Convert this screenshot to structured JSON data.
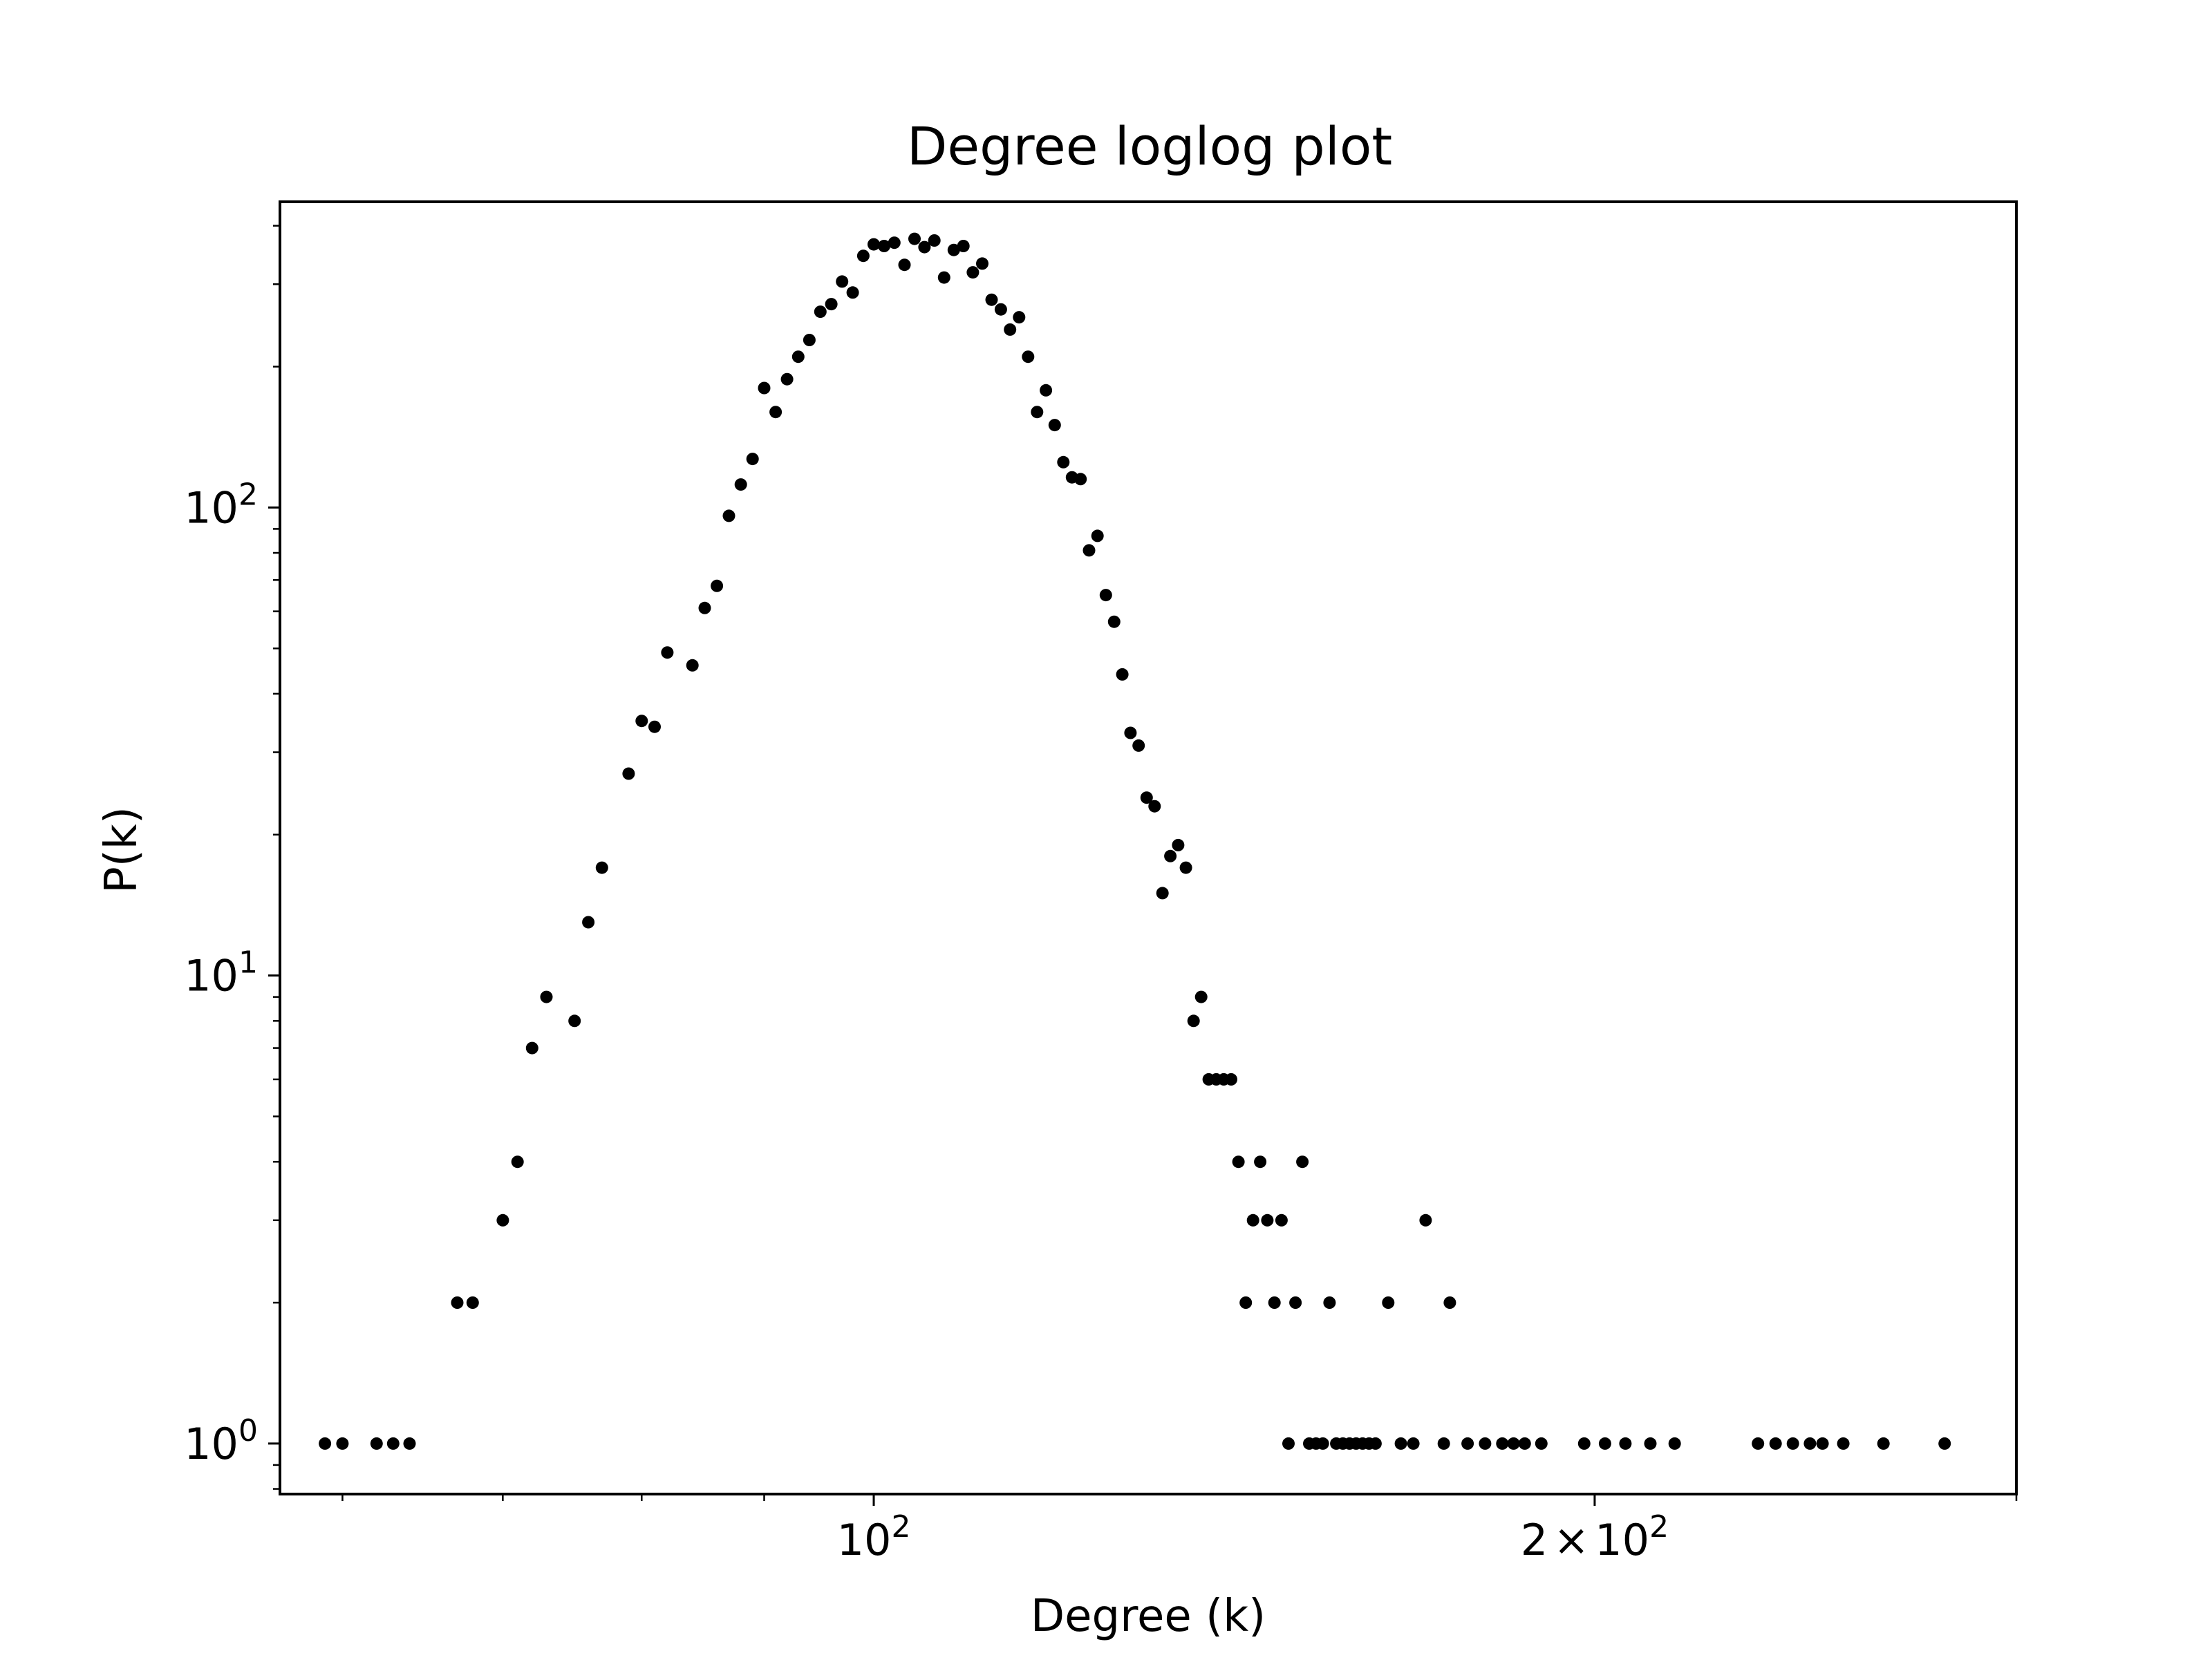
{
  "chart_data": {
    "type": "scatter",
    "title": "Degree loglog plot",
    "xlabel": "Degree (k)",
    "ylabel": "P(k)",
    "x_scale": "log",
    "y_scale": "log",
    "xlim": [
      56.5,
      300
    ],
    "ylim": [
      0.78,
      450
    ],
    "grid": false,
    "legend": "none",
    "marker_color": "#000000",
    "x_ticks": [
      {
        "value": 100,
        "base": "10",
        "exp": "2"
      },
      {
        "value": 200,
        "mantissa": "2",
        "times": "×",
        "base": "10",
        "exp": "2"
      }
    ],
    "y_ticks": [
      {
        "value": 1,
        "base": "10",
        "exp": "0"
      },
      {
        "value": 10,
        "base": "10",
        "exp": "1"
      },
      {
        "value": 100,
        "base": "10",
        "exp": "2"
      }
    ],
    "x": [
      59,
      60,
      62,
      63,
      64,
      67,
      68,
      70,
      71,
      72,
      73,
      75,
      76,
      77,
      79,
      80,
      81,
      82,
      84,
      85,
      86,
      87,
      88,
      89,
      90,
      91,
      92,
      93,
      94,
      95,
      96,
      97,
      98,
      99,
      100,
      101,
      102,
      103,
      104,
      105,
      106,
      107,
      108,
      109,
      110,
      111,
      112,
      113,
      114,
      115,
      116,
      117,
      118,
      119,
      120,
      121,
      122,
      123,
      124,
      125,
      126,
      127,
      128,
      129,
      130,
      131,
      132,
      133,
      134,
      135,
      136,
      137,
      138,
      139,
      140,
      141,
      142,
      143,
      144,
      145,
      146,
      147,
      148,
      149,
      150,
      151,
      152,
      153,
      154,
      155,
      156,
      157,
      158,
      159,
      160,
      161,
      162,
      164,
      166,
      168,
      170,
      173,
      174,
      177,
      180,
      183,
      185,
      187,
      190,
      198,
      202,
      206,
      211,
      216,
      234,
      238,
      242,
      246,
      249,
      254,
      264,
      280
    ],
    "y": [
      1,
      1,
      1,
      1,
      1,
      2,
      2,
      3,
      4,
      7,
      9,
      8,
      13,
      17,
      27,
      35,
      34,
      49,
      46,
      61,
      68,
      96,
      112,
      127,
      180,
      160,
      188,
      210,
      228,
      262,
      272,
      304,
      288,
      345,
      365,
      362,
      368,
      330,
      375,
      360,
      372,
      310,
      355,
      362,
      318,
      332,
      278,
      265,
      240,
      255,
      210,
      160,
      178,
      150,
      125,
      116,
      115,
      81,
      87,
      65,
      57,
      44,
      33,
      31,
      24,
      23,
      15,
      18,
      19,
      17,
      8,
      9,
      6,
      6,
      6,
      6,
      4,
      2,
      3,
      4,
      3,
      2,
      3,
      1,
      2,
      4,
      1,
      1,
      1,
      2,
      1,
      1,
      1,
      1,
      1,
      1,
      1,
      2,
      1,
      1,
      3,
      1,
      2,
      1,
      1,
      1,
      1,
      1,
      1,
      1,
      1,
      1,
      1,
      1,
      1,
      1,
      1,
      1,
      1,
      1,
      1,
      1
    ]
  }
}
